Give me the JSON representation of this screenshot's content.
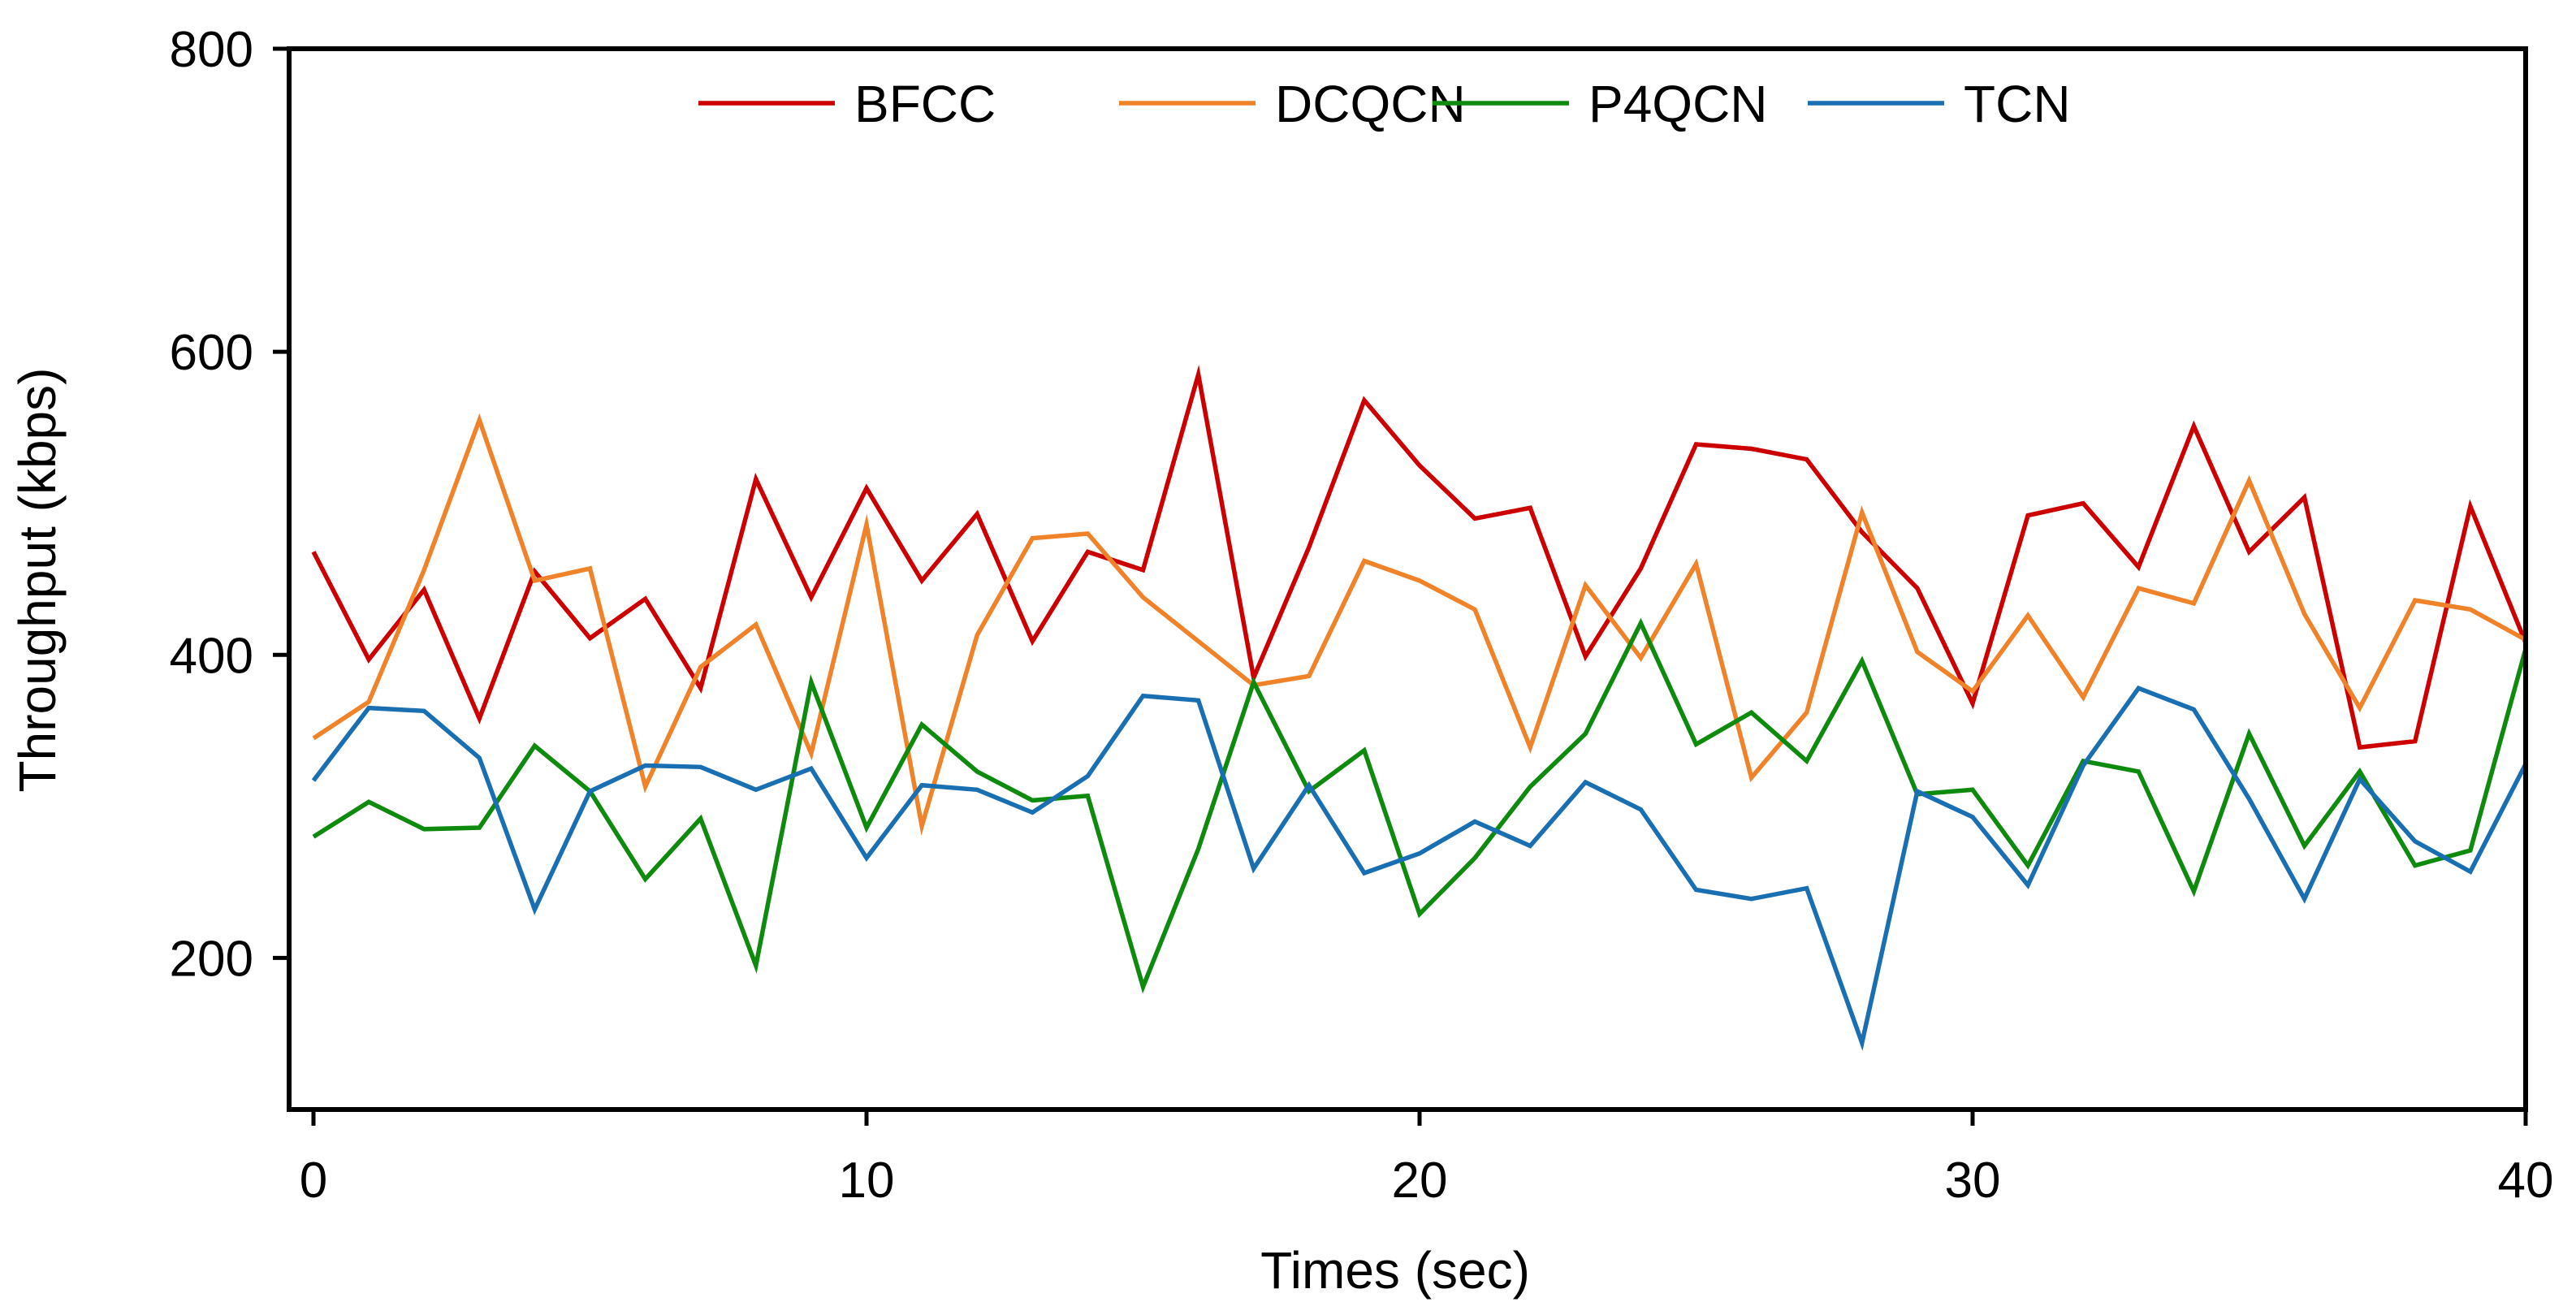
{
  "chart_data": {
    "type": "line",
    "title": "",
    "xlabel": "Times (sec)",
    "ylabel": "Throughput (kbps)",
    "xlim": [
      0,
      40
    ],
    "ylim": [
      100,
      800
    ],
    "xticks": [
      0,
      10,
      20,
      30,
      40
    ],
    "yticks": [
      200,
      400,
      600,
      800
    ],
    "xtick_labels": [
      "0",
      "10",
      "20",
      "30",
      "40"
    ],
    "ytick_labels": [
      "200",
      "400",
      "600",
      "800"
    ],
    "grid": false,
    "legend_position": "top-center",
    "x": [
      0,
      1,
      2,
      3,
      4,
      5,
      6,
      7,
      8,
      9,
      10,
      11,
      12,
      13,
      14,
      15,
      16,
      17,
      18,
      19,
      20,
      21,
      22,
      23,
      24,
      25,
      26,
      27,
      28,
      29,
      30,
      31,
      32,
      33,
      34,
      35,
      36,
      37,
      38,
      39,
      40
    ],
    "series": [
      {
        "name": "BFCC",
        "color": "#cc0000",
        "values": [
          468,
          397,
          443,
          358,
          455,
          411,
          437,
          378,
          516,
          438,
          510,
          449,
          493,
          409,
          468,
          456,
          585,
          385,
          471,
          568,
          525,
          490,
          497,
          399,
          457,
          539,
          536,
          529,
          481,
          444,
          368,
          492,
          500,
          458,
          551,
          468,
          504,
          339,
          343,
          498,
          408
        ]
      },
      {
        "name": "DCQCN",
        "color": "#f0822a",
        "values": [
          345,
          369,
          456,
          555,
          449,
          457,
          313,
          392,
          420,
          335,
          486,
          287,
          413,
          477,
          480,
          438,
          409,
          380,
          386,
          462,
          449,
          430,
          339,
          446,
          398,
          460,
          319,
          362,
          494,
          402,
          376,
          426,
          372,
          444,
          434,
          515,
          427,
          365,
          436,
          430,
          410
        ]
      },
      {
        "name": "P4QCN",
        "color": "#0e8a0e",
        "values": [
          280,
          303,
          285,
          286,
          340,
          310,
          252,
          292,
          195,
          382,
          286,
          354,
          323,
          304,
          307,
          181,
          272,
          382,
          310,
          337,
          229,
          266,
          313,
          348,
          421,
          341,
          362,
          330,
          396,
          308,
          311,
          261,
          330,
          323,
          244,
          348,
          274,
          323,
          261,
          271,
          404
        ]
      },
      {
        "name": "TCN",
        "color": "#1a6fb3",
        "values": [
          317,
          365,
          363,
          332,
          232,
          310,
          327,
          326,
          311,
          325,
          266,
          314,
          311,
          296,
          320,
          373,
          370,
          259,
          314,
          256,
          269,
          290,
          274,
          316,
          298,
          245,
          239,
          246,
          144,
          310,
          293,
          248,
          327,
          378,
          364,
          305,
          239,
          318,
          277,
          257,
          328
        ]
      }
    ]
  }
}
